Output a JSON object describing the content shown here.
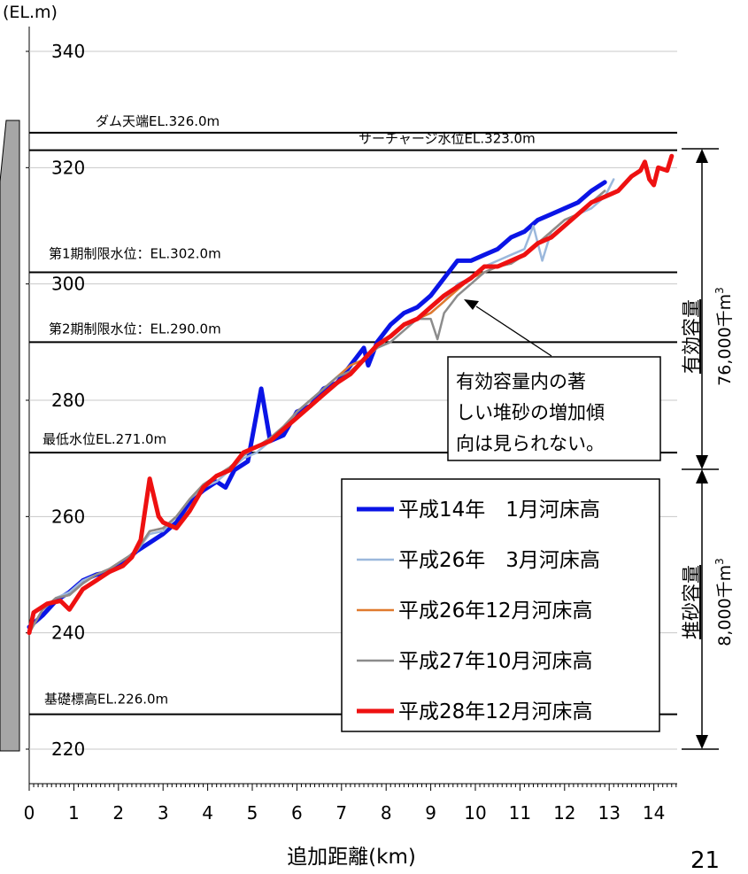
{
  "page_number": "21",
  "chart_data": {
    "type": "line",
    "ylabel": "(EL.m)",
    "xlabel": "追加距離(km)",
    "xlim": [
      0,
      14.5
    ],
    "ylim": [
      215,
      340
    ],
    "y_ticks": [
      "340",
      "320",
      "300",
      "280",
      "260",
      "240",
      "220"
    ],
    "x_ticks": [
      "0",
      "1",
      "2",
      "3",
      "4",
      "5",
      "6",
      "7",
      "8",
      "9",
      "10",
      "11",
      "12",
      "13",
      "14"
    ],
    "reference_lines": [
      {
        "label": "ダム天端EL.326.0m",
        "value": 326.0
      },
      {
        "label": "サーチャージ水位EL.323.0m",
        "value": 323.0
      },
      {
        "label": "第1期制限水位：EL.302.0m",
        "value": 302.0
      },
      {
        "label": "第2期制限水位：EL.290.0m",
        "value": 290.0
      },
      {
        "label": "最低水位EL.271.0m",
        "value": 271.0
      },
      {
        "label": "基礎標高EL.226.0m",
        "value": 226.0
      }
    ],
    "capacities": [
      {
        "label": "有効容量",
        "value": "76,000千m",
        "sup": "3",
        "range": [
          271.0,
          323.0
        ]
      },
      {
        "label": "堆砂容量",
        "value": "8,000千m",
        "sup": "3",
        "range": [
          226.0,
          271.0
        ]
      }
    ],
    "annotation": {
      "lines": [
        "有効容量内の著",
        "しい堆砂の増加傾",
        "向は見られない。"
      ],
      "points_to": {
        "x": 9.9,
        "y": 299.0
      }
    },
    "series": [
      {
        "name": "平成14年　1月河床高",
        "color": "#0a14e6",
        "x": [
          0,
          0.3,
          0.6,
          0.9,
          1.2,
          1.5,
          1.8,
          2.1,
          2.4,
          2.7,
          3.0,
          3.3,
          3.6,
          3.9,
          4.2,
          4.4,
          4.6,
          4.9,
          5.2,
          5.4,
          5.7,
          6.0,
          6.3,
          6.6,
          6.9,
          7.2,
          7.5,
          7.6,
          7.8,
          8.1,
          8.4,
          8.7,
          9.0,
          9.3,
          9.6,
          9.9,
          10.2,
          10.5,
          10.8,
          11.1,
          11.4,
          11.7,
          12.0,
          12.3,
          12.6,
          12.9
        ],
        "y": [
          241,
          243,
          245.5,
          247,
          249,
          250,
          250.5,
          252,
          254,
          255.5,
          257,
          259,
          262.5,
          264.5,
          266,
          265,
          268,
          269.5,
          282,
          273,
          274,
          278,
          279,
          282,
          283,
          286,
          289,
          286,
          290,
          293,
          295,
          296,
          298,
          301,
          304,
          304,
          305,
          306,
          308,
          309,
          311,
          312,
          313,
          314,
          316,
          317.5
        ]
      },
      {
        "name": "平成26年　3月河床高",
        "color": "#9bb8dc",
        "x": [
          0,
          0.3,
          0.6,
          0.9,
          1.2,
          1.5,
          1.8,
          2.1,
          2.4,
          2.7,
          3.0,
          3.3,
          3.6,
          3.9,
          4.2,
          4.5,
          4.8,
          5.1,
          5.4,
          5.7,
          6.0,
          6.3,
          6.6,
          6.9,
          7.2,
          7.5,
          7.8,
          8.1,
          8.4,
          8.7,
          9.0,
          9.3,
          9.6,
          9.9,
          10.2,
          10.5,
          10.8,
          11.1,
          11.3,
          11.5,
          11.7,
          12.0,
          12.3,
          12.6,
          12.9,
          13.1
        ],
        "y": [
          240,
          244,
          246,
          247,
          249,
          250,
          251,
          252.5,
          254,
          257,
          257.5,
          260,
          263,
          265,
          266,
          268,
          270,
          271,
          273,
          275,
          278,
          280,
          282,
          284,
          286,
          287,
          289,
          291,
          293,
          294,
          295,
          297,
          300,
          301,
          303,
          304,
          305,
          306,
          310,
          304,
          309,
          311,
          312,
          313,
          315,
          318
        ]
      },
      {
        "name": "平成26年12月河床高",
        "color": "#e07a2e",
        "x": [
          0,
          0.3,
          0.6,
          0.9,
          1.2,
          1.5,
          1.8,
          2.1,
          2.4,
          2.7,
          3.0,
          3.3,
          3.6,
          3.9,
          4.2,
          4.5,
          4.8,
          5.1,
          5.4,
          5.7,
          6.0,
          6.3,
          6.6,
          6.9,
          7.2,
          7.5,
          7.8,
          8.1,
          8.4,
          8.7,
          9.0,
          9.3,
          9.6,
          9.9,
          10.2,
          10.5,
          10.8,
          11.1,
          11.4,
          11.7,
          12.0,
          12.3,
          12.6,
          12.9
        ],
        "y": [
          240,
          244,
          246,
          246.5,
          248.5,
          250,
          251,
          252.5,
          254,
          257.5,
          258,
          260,
          263,
          265.5,
          267,
          268.5,
          270.5,
          272,
          273.5,
          275.5,
          278,
          280,
          282,
          284,
          286,
          287,
          289,
          291,
          293,
          294,
          295,
          297,
          299,
          301,
          302,
          303,
          303.5,
          305,
          307,
          309,
          311,
          312,
          314,
          316
        ]
      },
      {
        "name": "平成27年10月河床高",
        "color": "#8c8c8c",
        "x": [
          0,
          0.3,
          0.6,
          0.9,
          1.2,
          1.5,
          1.8,
          2.1,
          2.4,
          2.7,
          3.0,
          3.3,
          3.6,
          3.9,
          4.2,
          4.5,
          4.8,
          5.1,
          5.4,
          5.7,
          6.0,
          6.3,
          6.6,
          6.9,
          7.2,
          7.5,
          7.8,
          8.1,
          8.4,
          8.7,
          9.0,
          9.15,
          9.3,
          9.6,
          9.9,
          10.2,
          10.5,
          10.8,
          11.1,
          11.4,
          11.7,
          12.0,
          12.3,
          12.6,
          12.9
        ],
        "y": [
          240,
          244,
          246,
          246.5,
          248.5,
          250,
          251,
          252.5,
          254,
          257.5,
          258,
          260,
          263,
          265.5,
          267,
          268.5,
          270.5,
          272,
          273.5,
          275.5,
          278,
          280,
          282,
          284,
          285,
          287,
          289,
          290,
          292,
          294,
          294,
          290.5,
          295,
          298,
          300,
          302,
          303,
          303.5,
          305,
          307,
          309,
          311,
          312,
          314,
          316
        ]
      },
      {
        "name": "平成28年12月河床高",
        "color": "#ee1111",
        "x": [
          0,
          0.1,
          0.4,
          0.7,
          0.9,
          1.2,
          1.5,
          1.8,
          2.1,
          2.3,
          2.5,
          2.7,
          2.9,
          3.0,
          3.3,
          3.6,
          3.9,
          4.2,
          4.5,
          4.8,
          5.1,
          5.4,
          5.7,
          6.0,
          6.3,
          6.6,
          6.9,
          7.2,
          7.5,
          7.8,
          8.1,
          8.4,
          8.7,
          9.0,
          9.3,
          9.6,
          9.9,
          10.2,
          10.5,
          10.8,
          11.1,
          11.4,
          11.7,
          12.0,
          12.3,
          12.6,
          12.9,
          13.2,
          13.5,
          13.7,
          13.8,
          13.9,
          14.0,
          14.1,
          14.3,
          14.4
        ],
        "y": [
          240,
          243.5,
          245,
          245.5,
          244,
          247.5,
          249,
          250.5,
          251.5,
          253,
          256,
          266.5,
          260,
          259,
          258,
          261,
          265,
          267,
          268,
          271,
          272,
          273,
          275,
          277,
          279,
          281,
          283,
          284.5,
          287,
          289.5,
          291,
          293,
          294,
          296,
          298,
          299.5,
          301,
          303,
          303,
          304,
          305,
          307,
          308,
          310,
          312,
          314,
          315,
          316,
          318.5,
          319.5,
          321,
          318,
          317,
          320,
          319.5,
          322
        ]
      }
    ]
  }
}
